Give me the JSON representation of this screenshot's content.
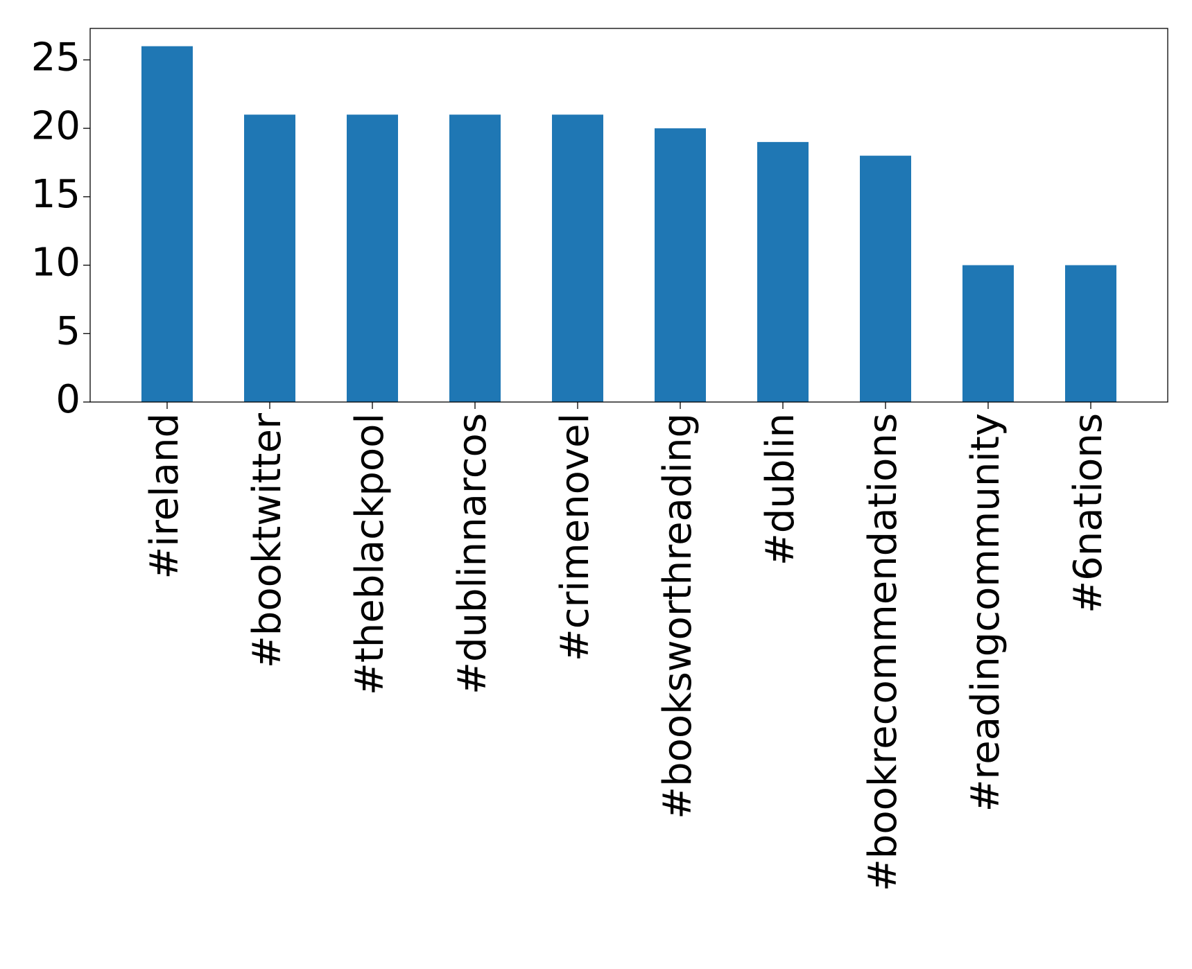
{
  "chart_data": {
    "type": "bar",
    "title": "",
    "xlabel": "",
    "ylabel": "",
    "categories": [
      "#ireland",
      "#booktwitter",
      "#theblackpool",
      "#dublinnarcos",
      "#crimenovel",
      "#booksworthreading",
      "#dublin",
      "#bookrecommendations",
      "#readingcommunity",
      "#6nations"
    ],
    "values": [
      26,
      21,
      21,
      21,
      21,
      20,
      19,
      18,
      10,
      10
    ],
    "ylim": [
      0,
      27.3
    ],
    "yticks": [
      0,
      5,
      10,
      15,
      20,
      25
    ],
    "xtick_rotation": "vertical",
    "grid": false,
    "legend": "none",
    "bar_color": "#1f77b4"
  }
}
